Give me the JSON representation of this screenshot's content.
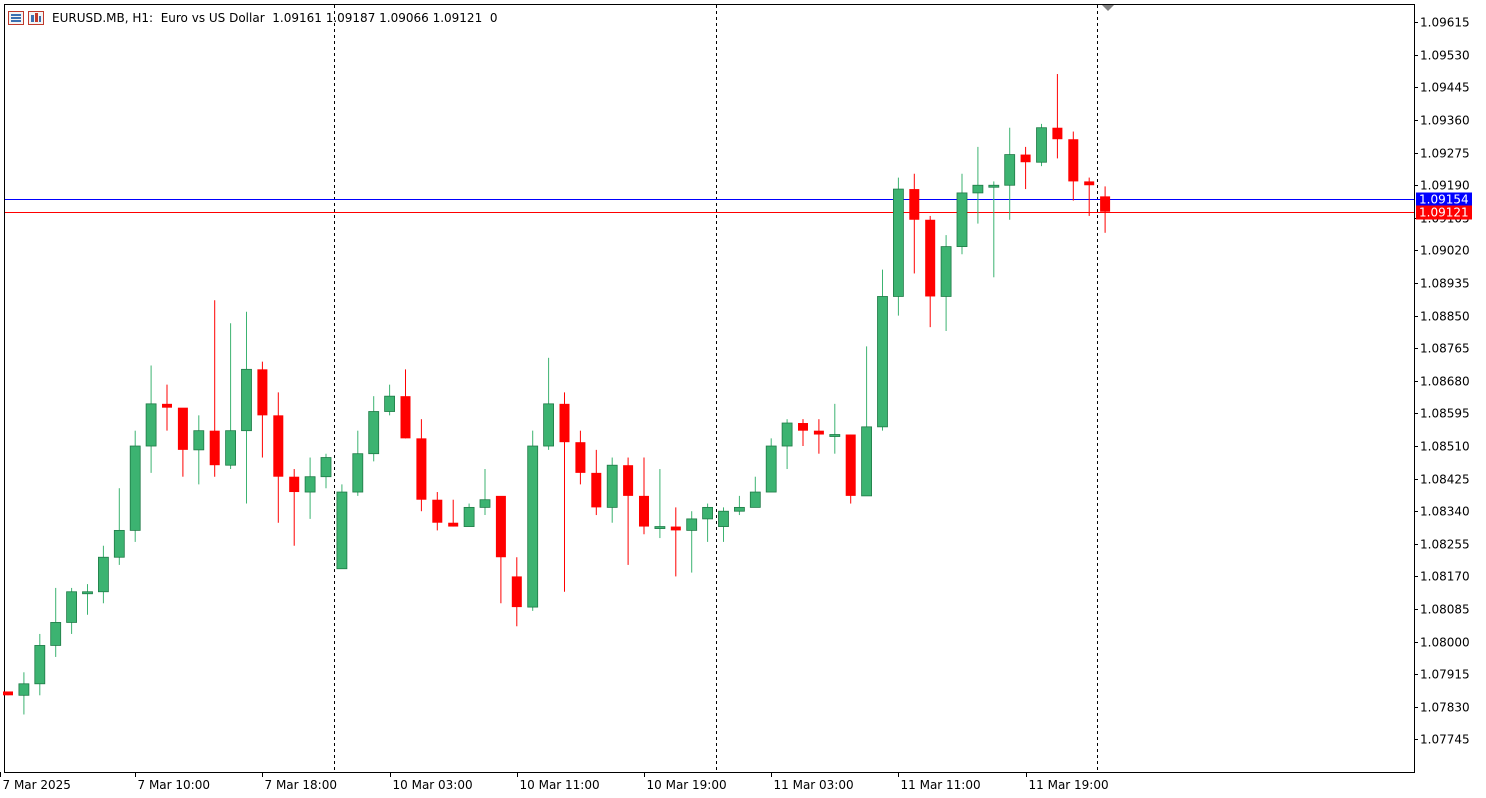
{
  "header": {
    "symbol_info": "EURUSD.MB, H1:  Euro vs US Dollar  1.09161 1.09187 1.09066 1.09121  0"
  },
  "colors": {
    "bull": "#3cb371",
    "bear": "#ff0000",
    "bid_line": "#0000ff",
    "ask_line": "#ff0000",
    "grid": "#000000"
  },
  "chart_data": {
    "type": "candlestick",
    "title": "EURUSD.MB, H1:  Euro vs US Dollar",
    "ylim": [
      1.0766,
      1.0966
    ],
    "y_ticks": [
      "1.09615",
      "1.09530",
      "1.09445",
      "1.09360",
      "1.09275",
      "1.09190",
      "1.09105",
      "1.09020",
      "1.08935",
      "1.08850",
      "1.08765",
      "1.08680",
      "1.08595",
      "1.08510",
      "1.08425",
      "1.08340",
      "1.08255",
      "1.08170",
      "1.08085",
      "1.08000",
      "1.07915",
      "1.07830",
      "1.07745"
    ],
    "y_tick_values": [
      1.09615,
      1.0953,
      1.09445,
      1.0936,
      1.09275,
      1.0919,
      1.09105,
      1.0902,
      1.08935,
      1.0885,
      1.08765,
      1.0868,
      1.08595,
      1.0851,
      1.08425,
      1.0834,
      1.08255,
      1.0817,
      1.08085,
      1.08,
      1.07915,
      1.0783,
      1.07745
    ],
    "x_labels": [
      {
        "label": "7 Mar 2025",
        "index": -0.5
      },
      {
        "label": "7 Mar 10:00",
        "index": 8
      },
      {
        "label": "7 Mar 18:00",
        "index": 16
      },
      {
        "label": "10 Mar 03:00",
        "index": 24
      },
      {
        "label": "10 Mar 11:00",
        "index": 32
      },
      {
        "label": "10 Mar 19:00",
        "index": 40
      },
      {
        "label": "11 Mar 03:00",
        "index": 48
      },
      {
        "label": "11 Mar 11:00",
        "index": 56
      },
      {
        "label": "11 Mar 19:00",
        "index": 64
      }
    ],
    "separators": [
      20.5,
      44.5,
      68.5
    ],
    "bid": {
      "label": "1.09154",
      "value": 1.09154
    },
    "ask": {
      "label": "1.09121",
      "value": 1.09121
    },
    "candles": [
      [
        1.0787,
        1.0787,
        1.0786,
        1.0786
      ],
      [
        1.0786,
        1.0792,
        1.0781,
        1.0789
      ],
      [
        1.0789,
        1.0802,
        1.0786,
        1.0799
      ],
      [
        1.0799,
        1.0814,
        1.0796,
        1.0805
      ],
      [
        1.0805,
        1.0814,
        1.0802,
        1.0813
      ],
      [
        1.0813,
        1.0815,
        1.0807,
        1.0813
      ],
      [
        1.0813,
        1.0825,
        1.081,
        1.0822
      ],
      [
        1.0822,
        1.084,
        1.082,
        1.0829
      ],
      [
        1.0829,
        1.0855,
        1.0826,
        1.0851
      ],
      [
        1.0851,
        1.0872,
        1.0844,
        1.0862
      ],
      [
        1.0862,
        1.0867,
        1.0855,
        1.0861
      ],
      [
        1.0861,
        1.086,
        1.0843,
        1.085
      ],
      [
        1.085,
        1.0859,
        1.0841,
        1.0855
      ],
      [
        1.0855,
        1.0889,
        1.0843,
        1.0846
      ],
      [
        1.0846,
        1.0883,
        1.0845,
        1.0855
      ],
      [
        1.0855,
        1.0886,
        1.0836,
        1.0871
      ],
      [
        1.0871,
        1.0873,
        1.0848,
        1.0859
      ],
      [
        1.0859,
        1.0865,
        1.0831,
        1.0843
      ],
      [
        1.0843,
        1.0845,
        1.0825,
        1.0839
      ],
      [
        1.0839,
        1.0848,
        1.0832,
        1.0843
      ],
      [
        1.0843,
        1.0849,
        1.084,
        1.0848
      ],
      [
        1.0819,
        1.0841,
        1.0819,
        1.0839
      ],
      [
        1.0839,
        1.0855,
        1.0838,
        1.0849
      ],
      [
        1.0849,
        1.0864,
        1.0847,
        1.086
      ],
      [
        1.086,
        1.0867,
        1.0859,
        1.0864
      ],
      [
        1.0864,
        1.0871,
        1.0853,
        1.0853
      ],
      [
        1.0853,
        1.0858,
        1.0834,
        1.0837
      ],
      [
        1.0837,
        1.0839,
        1.0829,
        1.0831
      ],
      [
        1.0831,
        1.0837,
        1.083,
        1.083
      ],
      [
        1.083,
        1.0836,
        1.083,
        1.0835
      ],
      [
        1.0835,
        1.0845,
        1.0833,
        1.0837
      ],
      [
        1.0838,
        1.0837,
        1.081,
        1.0822
      ],
      [
        1.0817,
        1.0822,
        1.0804,
        1.0809
      ],
      [
        1.0809,
        1.0855,
        1.0808,
        1.0851
      ],
      [
        1.0851,
        1.0874,
        1.085,
        1.0862
      ],
      [
        1.0862,
        1.0865,
        1.0813,
        1.0852
      ],
      [
        1.0852,
        1.0855,
        1.0841,
        1.0844
      ],
      [
        1.0844,
        1.085,
        1.0833,
        1.0835
      ],
      [
        1.0835,
        1.0848,
        1.0831,
        1.0846
      ],
      [
        1.0846,
        1.0848,
        1.082,
        1.0838
      ],
      [
        1.0838,
        1.0848,
        1.0828,
        1.083
      ],
      [
        1.083,
        1.0845,
        1.0827,
        1.083
      ],
      [
        1.083,
        1.0835,
        1.0817,
        1.0829
      ],
      [
        1.0829,
        1.0834,
        1.0818,
        1.0832
      ],
      [
        1.0832,
        1.0836,
        1.0826,
        1.0835
      ],
      [
        1.083,
        1.0835,
        1.0826,
        1.0834
      ],
      [
        1.0834,
        1.0838,
        1.0833,
        1.0835
      ],
      [
        1.0835,
        1.0843,
        1.0835,
        1.0839
      ],
      [
        1.0839,
        1.0853,
        1.0839,
        1.0851
      ],
      [
        1.0851,
        1.0858,
        1.0845,
        1.0857
      ],
      [
        1.0857,
        1.0858,
        1.0851,
        1.0855
      ],
      [
        1.0855,
        1.0858,
        1.0849,
        1.0854
      ],
      [
        1.0854,
        1.0862,
        1.0849,
        1.0854
      ],
      [
        1.0854,
        1.0854,
        1.0836,
        1.0838
      ],
      [
        1.0838,
        1.0877,
        1.0838,
        1.0856
      ],
      [
        1.0856,
        1.0897,
        1.0855,
        1.089
      ],
      [
        1.089,
        1.0921,
        1.0885,
        1.0918
      ],
      [
        1.0918,
        1.0922,
        1.0896,
        1.091
      ],
      [
        1.091,
        1.0911,
        1.0882,
        1.089
      ],
      [
        1.089,
        1.0906,
        1.0881,
        1.0903
      ],
      [
        1.0903,
        1.0922,
        1.0901,
        1.0917
      ],
      [
        1.0917,
        1.0929,
        1.0909,
        1.0919
      ],
      [
        1.0919,
        1.092,
        1.0895,
        1.0919
      ],
      [
        1.0919,
        1.0934,
        1.091,
        1.0927
      ],
      [
        1.0927,
        1.0929,
        1.0918,
        1.0925
      ],
      [
        1.0925,
        1.0935,
        1.0924,
        1.0934
      ],
      [
        1.0934,
        1.0948,
        1.0926,
        1.0931
      ],
      [
        1.0931,
        1.0933,
        1.0915,
        1.092
      ],
      [
        1.092,
        1.0921,
        1.0911,
        1.0919
      ],
      [
        1.09161,
        1.09187,
        1.09066,
        1.09121
      ]
    ]
  }
}
